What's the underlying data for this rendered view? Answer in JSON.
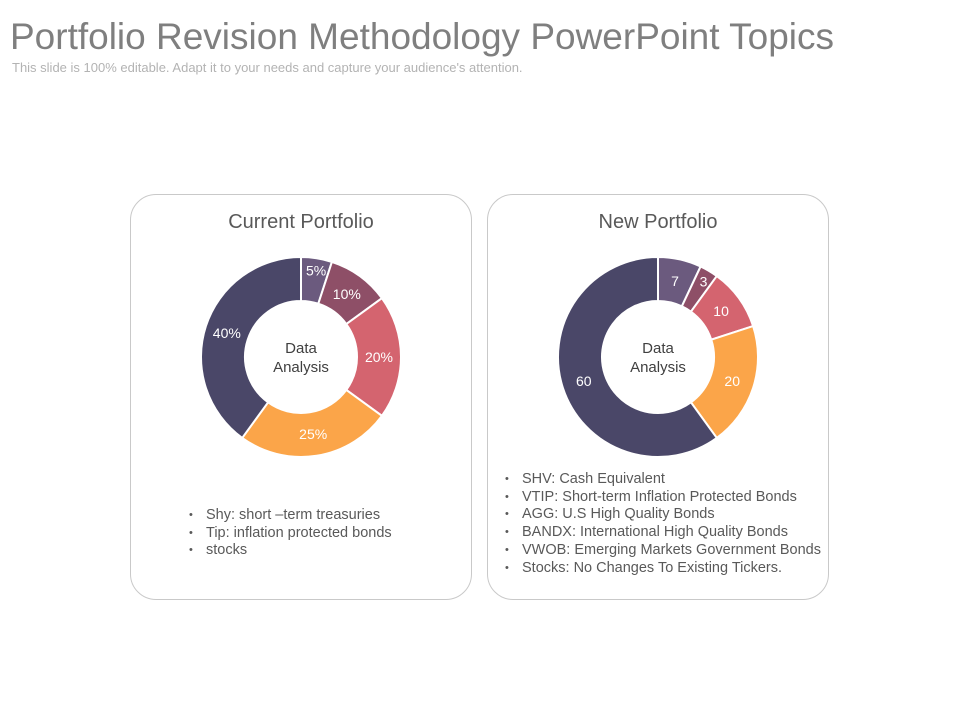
{
  "header": {
    "title": "Portfolio Revision Methodology PowerPoint Topics",
    "subtitle": "This slide is 100% editable. Adapt it to your needs and capture your audience's attention."
  },
  "colors": {
    "purple": "#6b5a7e",
    "plum": "#8e4f67",
    "rose": "#d4646f",
    "orange": "#fba549",
    "navy": "#4a4768"
  },
  "chart_data": [
    {
      "type": "pie",
      "donut": true,
      "title": "Current Portfolio",
      "center_label": [
        "Data",
        "Analysis"
      ],
      "slices": [
        {
          "value": 5,
          "label": "5%",
          "color": "#6b5a7e"
        },
        {
          "value": 10,
          "label": "10%",
          "color": "#8e4f67"
        },
        {
          "value": 20,
          "label": "20%",
          "color": "#d4646f"
        },
        {
          "value": 25,
          "label": "25%",
          "color": "#fba549"
        },
        {
          "value": 40,
          "label": "40%",
          "color": "#4a4768"
        }
      ],
      "notes": [
        "Shy: short –term treasuries",
        "Tip: inflation protected bonds",
        "stocks"
      ]
    },
    {
      "type": "pie",
      "donut": true,
      "title": "New Portfolio",
      "center_label": [
        "Data",
        "Analysis"
      ],
      "slices": [
        {
          "value": 7,
          "label": "7",
          "color": "#6b5a7e"
        },
        {
          "value": 3,
          "label": "3",
          "color": "#8e4f67"
        },
        {
          "value": 10,
          "label": "10",
          "color": "#d4646f"
        },
        {
          "value": 20,
          "label": "20",
          "color": "#fba549"
        },
        {
          "value": 60,
          "label": "60",
          "color": "#4a4768"
        }
      ],
      "notes": [
        "SHV: Cash Equivalent",
        "VTIP: Short-term Inflation Protected Bonds",
        "AGG: U.S High Quality Bonds",
        "BANDX: International High Quality Bonds",
        "VWOB: Emerging Markets Government Bonds",
        "Stocks: No Changes To Existing Tickers."
      ]
    }
  ]
}
